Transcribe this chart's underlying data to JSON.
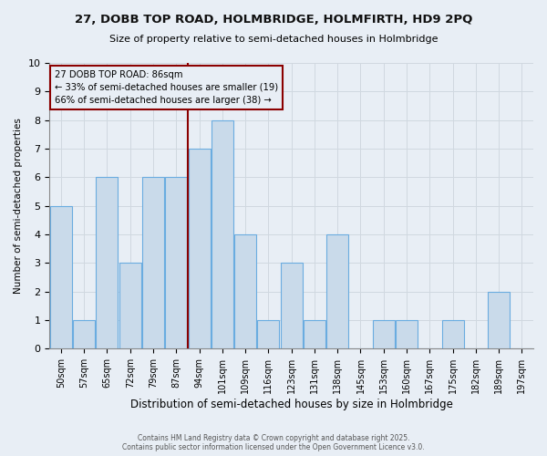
{
  "title": "27, DOBB TOP ROAD, HOLMBRIDGE, HOLMFIRTH, HD9 2PQ",
  "subtitle": "Size of property relative to semi-detached houses in Holmbridge",
  "xlabel": "Distribution of semi-detached houses by size in Holmbridge",
  "ylabel": "Number of semi-detached properties",
  "categories": [
    "50sqm",
    "57sqm",
    "65sqm",
    "72sqm",
    "79sqm",
    "87sqm",
    "94sqm",
    "101sqm",
    "109sqm",
    "116sqm",
    "123sqm",
    "131sqm",
    "138sqm",
    "145sqm",
    "153sqm",
    "160sqm",
    "167sqm",
    "175sqm",
    "182sqm",
    "189sqm",
    "197sqm"
  ],
  "values": [
    5,
    1,
    6,
    3,
    6,
    6,
    7,
    8,
    4,
    1,
    3,
    1,
    4,
    0,
    1,
    1,
    0,
    1,
    0,
    2,
    0
  ],
  "bar_color": "#c9daea",
  "bar_edge_color": "#6aace0",
  "property_bin_index": 5,
  "annotation_line1": "27 DOBB TOP ROAD: 86sqm",
  "annotation_line2": "← 33% of semi-detached houses are smaller (19)",
  "annotation_line3": "66% of semi-detached houses are larger (38) →",
  "vline_color": "#8b0000",
  "annotation_box_edgecolor": "#8b0000",
  "footer": "Contains HM Land Registry data © Crown copyright and database right 2025.\nContains public sector information licensed under the Open Government Licence v3.0.",
  "ylim": [
    0,
    10
  ],
  "background_color": "#e8eef5"
}
